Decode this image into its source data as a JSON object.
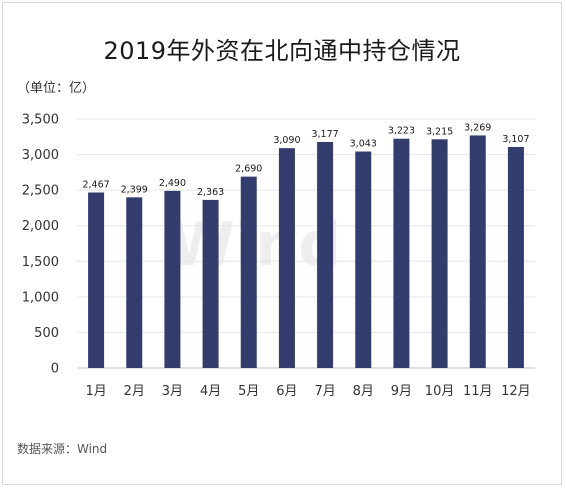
{
  "title": "2019年外资在北向通中持仓情况",
  "unit_label": "（单位：亿）",
  "source": "数据来源：Wind",
  "watermark": "Wind",
  "colors": {
    "bar": "#323d6e",
    "grid": "#e6e6e6",
    "axis": "#bfbfbf"
  },
  "chart_data": {
    "type": "bar",
    "title": "2019年外资在北向通中持仓情况",
    "categories": [
      "1月",
      "2月",
      "3月",
      "4月",
      "5月",
      "6月",
      "7月",
      "8月",
      "9月",
      "10月",
      "11月",
      "12月"
    ],
    "values": [
      2467,
      2399,
      2490,
      2363,
      2690,
      3090,
      3177,
      3043,
      3223,
      3215,
      3269,
      3107
    ],
    "value_labels": [
      "2,467",
      "2,399",
      "2,490",
      "2,363",
      "2,690",
      "3,090",
      "3,177",
      "3,043",
      "3,223",
      "3,215",
      "3,269",
      "3,107"
    ],
    "yticks": [
      "0",
      "500",
      "1,000",
      "1,500",
      "2,000",
      "2,500",
      "3,000",
      "3,500"
    ],
    "ylim": [
      0,
      3500
    ],
    "grid": true,
    "legend": "none"
  }
}
